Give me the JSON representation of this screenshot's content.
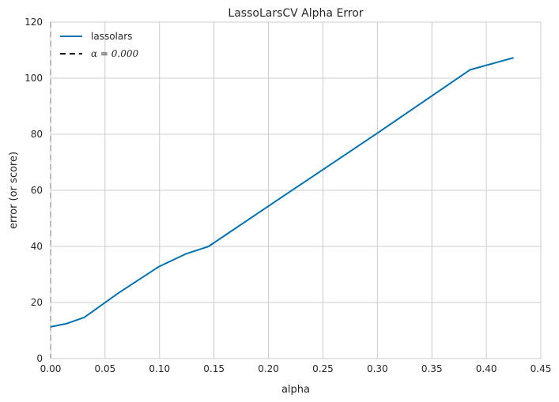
{
  "chart_data": {
    "type": "line",
    "title": "LassoLarsCV Alpha Error",
    "xlabel": "alpha",
    "ylabel": "error (or score)",
    "xlim": [
      0.0,
      0.45
    ],
    "ylim": [
      0,
      120
    ],
    "xticks": [
      "0.00",
      "0.05",
      "0.10",
      "0.15",
      "0.20",
      "0.25",
      "0.30",
      "0.35",
      "0.40",
      "0.45"
    ],
    "yticks": [
      "0",
      "20",
      "40",
      "60",
      "80",
      "100",
      "120"
    ],
    "grid": true,
    "legend_position": "top-left",
    "series": [
      {
        "name": "lassolars",
        "color": "#0072b2",
        "x": [
          0.0,
          0.015,
          0.031,
          0.062,
          0.099,
          0.124,
          0.145,
          0.2,
          0.3,
          0.385,
          0.425
        ],
        "y": [
          11.3,
          12.5,
          14.7,
          23.3,
          32.7,
          37.3,
          40.0,
          54.4,
          80.4,
          103.0,
          107.3
        ]
      }
    ],
    "vline": {
      "x": 0.0,
      "color": "#000000",
      "style": "dashed"
    },
    "legend": [
      {
        "label": "lassolars",
        "style": "solid",
        "color": "#0072b2"
      },
      {
        "label": "α = 0.000",
        "style": "dashed",
        "color": "#000000"
      }
    ]
  }
}
